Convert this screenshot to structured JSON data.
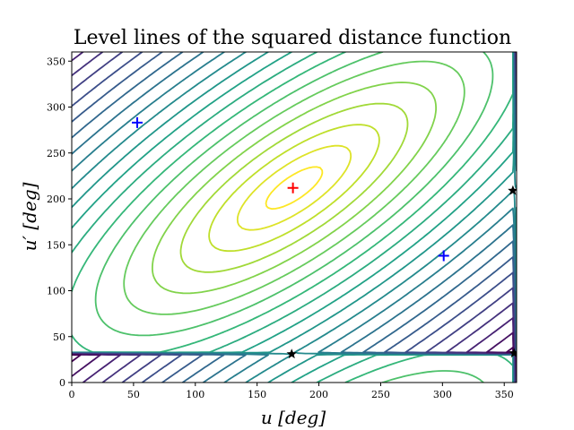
{
  "chart_data": {
    "type": "contour",
    "title": "Level lines of the squared distance function",
    "xlabel": "u [deg]",
    "ylabel": "u′ [deg]",
    "xlim": [
      0,
      360
    ],
    "ylim": [
      0,
      360
    ],
    "xticks": [
      0,
      50,
      100,
      150,
      200,
      250,
      300,
      350
    ],
    "yticks": [
      0,
      50,
      100,
      150,
      200,
      250,
      300,
      350
    ],
    "colormap": "viridis",
    "grid": false,
    "markers": [
      {
        "kind": "plus",
        "color": "#0000ff",
        "x": 53,
        "y": 283
      },
      {
        "kind": "plus",
        "color": "#0000ff",
        "x": 301,
        "y": 138
      },
      {
        "kind": "plus",
        "color": "#ff0000",
        "x": 179,
        "y": 212
      },
      {
        "kind": "star",
        "color": "#000000",
        "x": 178,
        "y": 31
      },
      {
        "kind": "star",
        "color": "#000000",
        "x": 357,
        "y": 209
      },
      {
        "kind": "star",
        "color": "#000000",
        "x": 358,
        "y": 32
      }
    ]
  }
}
